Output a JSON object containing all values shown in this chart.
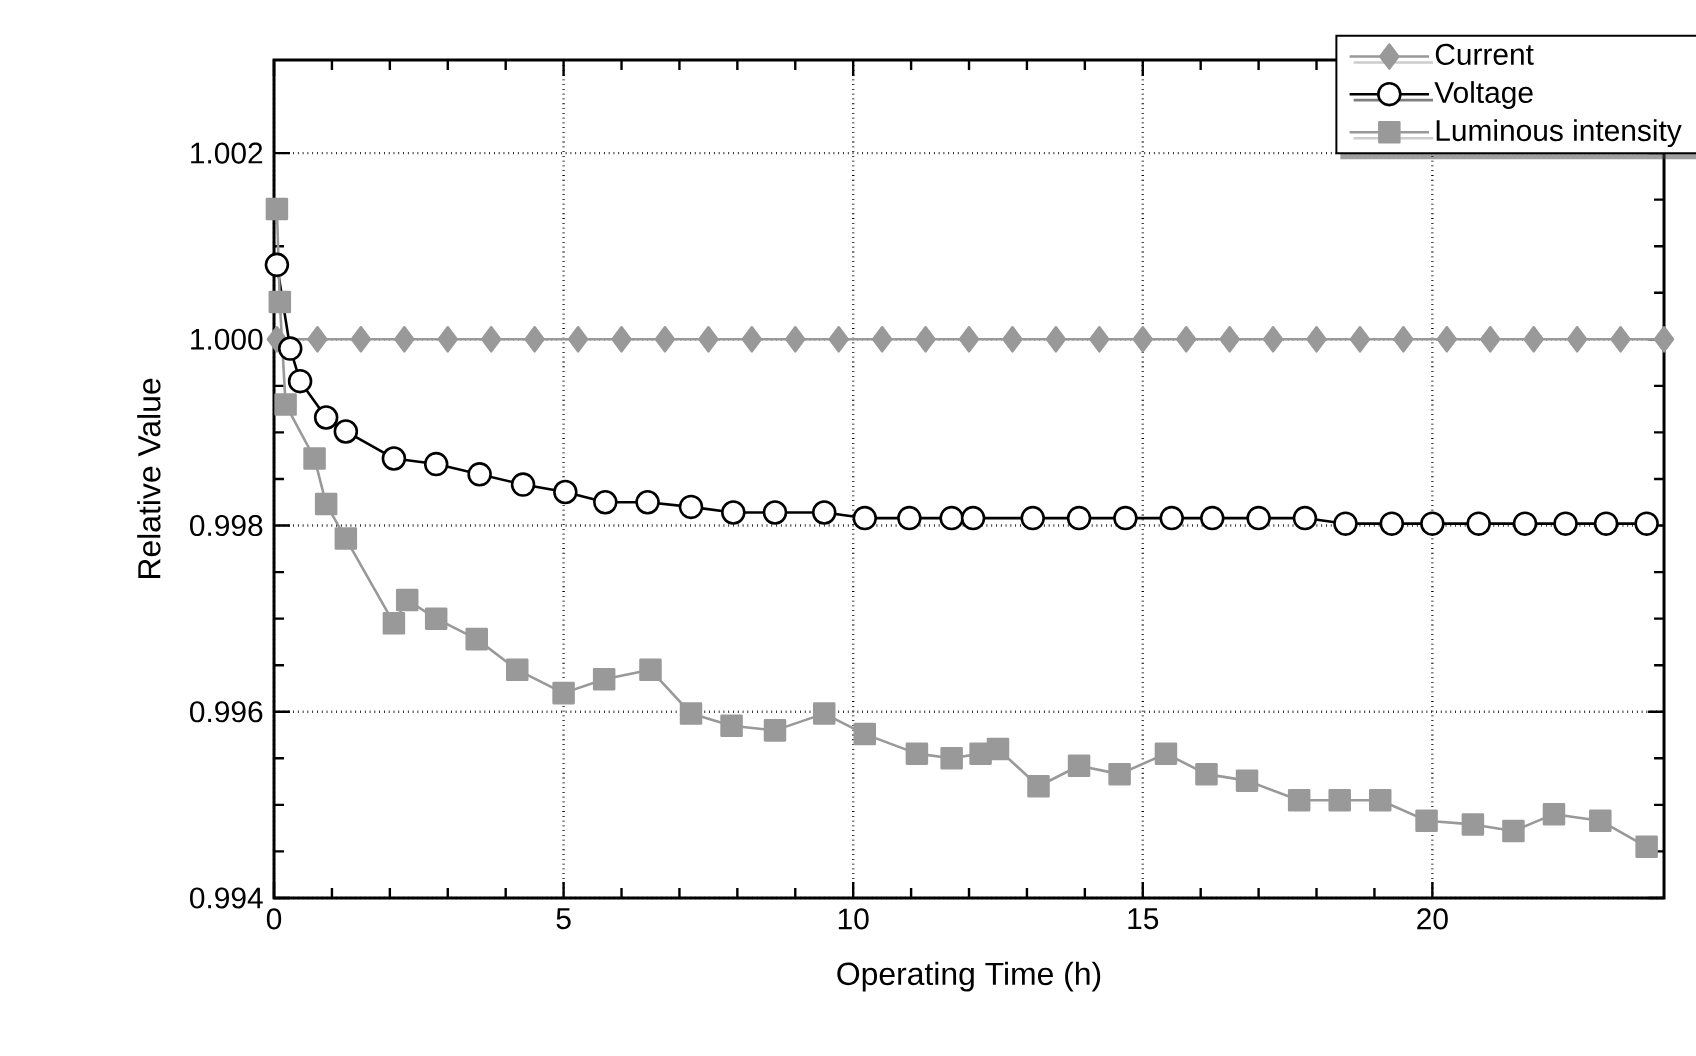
{
  "chart_data": {
    "type": "line",
    "xlabel": "Operating Time (h)",
    "ylabel": "Relative Value",
    "xlim": [
      0,
      24
    ],
    "ylim": [
      0.994,
      1.003
    ],
    "xticks": [
      0,
      5,
      10,
      15,
      20
    ],
    "yticks": [
      0.994,
      0.996,
      0.998,
      {
        "value": 1.0,
        "label": "1.000"
      },
      1.002
    ],
    "grid": true,
    "legend": "top right",
    "series": [
      {
        "name": "Current",
        "color": "#999999",
        "marker": "diamond",
        "x": [
          0.05,
          0.75,
          1.5,
          2.25,
          3.0,
          3.75,
          4.5,
          5.25,
          6.0,
          6.75,
          7.5,
          8.25,
          9.0,
          9.75,
          10.5,
          11.25,
          12.0,
          12.75,
          13.5,
          14.25,
          15.0,
          15.75,
          16.5,
          17.25,
          18.0,
          18.75,
          19.5,
          20.25,
          21.0,
          21.75,
          22.5,
          23.25,
          24.0
        ],
        "values": [
          1.0,
          1.0,
          1.0,
          1.0,
          1.0,
          1.0,
          1.0,
          1.0,
          1.0,
          1.0,
          1.0,
          1.0,
          1.0,
          1.0,
          1.0,
          1.0,
          1.0,
          1.0,
          1.0,
          1.0,
          1.0,
          1.0,
          1.0,
          1.0,
          1.0,
          1.0,
          1.0,
          1.0,
          1.0,
          1.0,
          1.0,
          1.0,
          1.0
        ]
      },
      {
        "name": "Voltage",
        "color": "#000000",
        "marker": "circle",
        "x": [
          0.05,
          0.28,
          0.45,
          0.9,
          1.24,
          2.07,
          2.8,
          3.55,
          4.3,
          5.03,
          5.72,
          6.45,
          7.2,
          7.93,
          8.65,
          9.5,
          10.2,
          10.97,
          11.7,
          12.07,
          13.1,
          13.9,
          14.7,
          15.5,
          16.2,
          17.0,
          17.8,
          18.5,
          19.3,
          20.0,
          20.8,
          21.6,
          22.3,
          23.0,
          23.7
        ],
        "values": [
          1.0008,
          0.9999,
          0.99955,
          0.99916,
          0.99901,
          0.99872,
          0.99866,
          0.99855,
          0.99844,
          0.99836,
          0.99825,
          0.99825,
          0.9982,
          0.99814,
          0.99814,
          0.99814,
          0.99808,
          0.99808,
          0.99808,
          0.99808,
          0.99808,
          0.99808,
          0.99808,
          0.99808,
          0.99808,
          0.99808,
          0.99808,
          0.99802,
          0.99802,
          0.99802,
          0.99802,
          0.99802,
          0.99802,
          0.99802,
          0.99802
        ]
      },
      {
        "name": "Luminous intensity",
        "color": "#999999",
        "marker": "square",
        "x": [
          0.05,
          0.1,
          0.2,
          0.7,
          0.9,
          1.24,
          2.07,
          2.3,
          2.8,
          3.5,
          4.2,
          5.0,
          5.7,
          6.5,
          7.2,
          7.9,
          8.65,
          9.5,
          10.2,
          11.1,
          11.7,
          12.2,
          12.5,
          13.2,
          13.9,
          14.6,
          15.4,
          16.1,
          16.8,
          17.7,
          18.4,
          19.1,
          19.9,
          20.7,
          21.4,
          22.1,
          22.9,
          23.7
        ],
        "values": [
          1.0014,
          1.0004,
          0.9993,
          0.99872,
          0.99823,
          0.99786,
          0.99695,
          0.9972,
          0.997,
          0.99678,
          0.99645,
          0.9962,
          0.99635,
          0.99645,
          0.99598,
          0.99585,
          0.9958,
          0.99598,
          0.99576,
          0.99555,
          0.9955,
          0.99555,
          0.9956,
          0.9952,
          0.99542,
          0.99533,
          0.99555,
          0.99533,
          0.99526,
          0.99505,
          0.99505,
          0.99505,
          0.99483,
          0.99479,
          0.99472,
          0.9949,
          0.99483,
          0.99455
        ]
      }
    ]
  }
}
